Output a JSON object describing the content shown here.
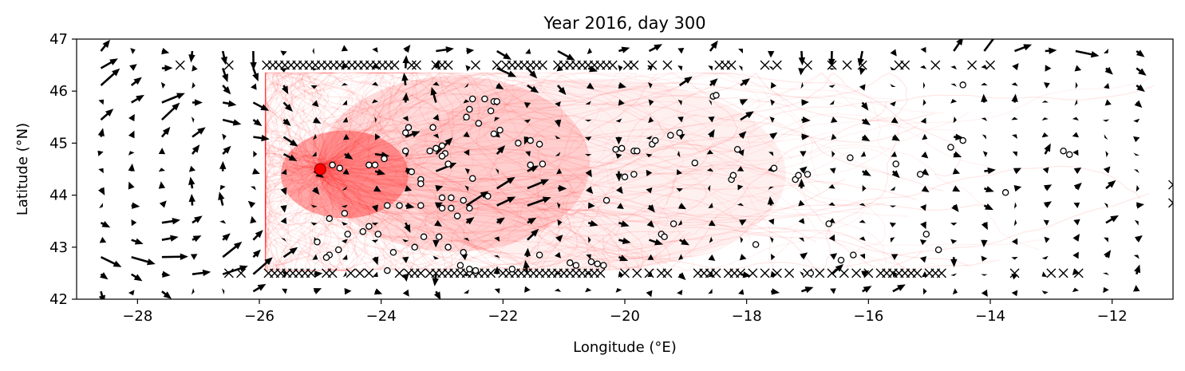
{
  "chart_data": {
    "type": "scatter",
    "title": "Year 2016, day 300",
    "xlabel": "Longitude (°E)",
    "ylabel": "Latitude (°N)",
    "xlim": [
      -29,
      -11
    ],
    "ylim": [
      42,
      47
    ],
    "xticks": [
      -28,
      -26,
      -24,
      -22,
      -20,
      -18,
      -16,
      -14,
      -12
    ],
    "yticks": [
      42,
      43,
      44,
      45,
      46,
      47
    ],
    "grid": false,
    "release_point": {
      "x": -25.0,
      "y": 44.5,
      "color": "#ff0000"
    },
    "particle_color": "#ffffff",
    "track_color": "#ff0000",
    "arrow_color": "#000000",
    "particles": [
      [
        -24.8,
        44.58
      ],
      [
        -24.68,
        44.52
      ],
      [
        -24.2,
        44.58
      ],
      [
        -24.1,
        44.58
      ],
      [
        -23.95,
        44.7
      ],
      [
        -23.5,
        44.45
      ],
      [
        -23.35,
        44.3
      ],
      [
        -23.35,
        44.22
      ],
      [
        -23.6,
        44.85
      ],
      [
        -23.6,
        45.2
      ],
      [
        -23.55,
        45.3
      ],
      [
        -23.2,
        44.85
      ],
      [
        -23.1,
        44.9
      ],
      [
        -23.0,
        44.95
      ],
      [
        -22.95,
        44.8
      ],
      [
        -22.9,
        44.6
      ],
      [
        -23.15,
        45.3
      ],
      [
        -23.0,
        44.75
      ],
      [
        -22.5,
        45.85
      ],
      [
        -22.3,
        45.85
      ],
      [
        -22.15,
        45.8
      ],
      [
        -22.1,
        45.8
      ],
      [
        -22.55,
        45.65
      ],
      [
        -22.6,
        45.5
      ],
      [
        -22.4,
        45.38
      ],
      [
        -22.2,
        45.62
      ],
      [
        -22.15,
        45.18
      ],
      [
        -22.05,
        45.25
      ],
      [
        -21.75,
        45.0
      ],
      [
        -21.55,
        45.05
      ],
      [
        -21.4,
        44.98
      ],
      [
        -21.55,
        44.58
      ],
      [
        -21.35,
        44.6
      ],
      [
        -22.5,
        44.32
      ],
      [
        -22.25,
        43.98
      ],
      [
        -23.0,
        43.95
      ],
      [
        -22.85,
        43.95
      ],
      [
        -23.0,
        43.75
      ],
      [
        -22.85,
        43.75
      ],
      [
        -22.75,
        43.6
      ],
      [
        -22.65,
        43.9
      ],
      [
        -22.55,
        43.75
      ],
      [
        -23.7,
        43.8
      ],
      [
        -23.35,
        43.8
      ],
      [
        -23.3,
        43.2
      ],
      [
        -23.05,
        43.2
      ],
      [
        -22.9,
        43.0
      ],
      [
        -22.65,
        42.9
      ],
      [
        -22.7,
        42.65
      ],
      [
        -22.55,
        42.58
      ],
      [
        -22.45,
        42.55
      ],
      [
        -21.85,
        42.58
      ],
      [
        -21.4,
        42.85
      ],
      [
        -20.9,
        42.7
      ],
      [
        -20.8,
        42.65
      ],
      [
        -20.55,
        42.72
      ],
      [
        -20.45,
        42.68
      ],
      [
        -20.35,
        42.65
      ],
      [
        -23.9,
        42.55
      ],
      [
        -23.8,
        42.9
      ],
      [
        -23.45,
        43.0
      ],
      [
        -24.05,
        43.25
      ],
      [
        -24.3,
        43.3
      ],
      [
        -24.55,
        43.25
      ],
      [
        -24.7,
        42.95
      ],
      [
        -24.85,
        42.85
      ],
      [
        -24.9,
        42.8
      ],
      [
        -25.05,
        43.1
      ],
      [
        -24.6,
        43.65
      ],
      [
        -24.85,
        43.55
      ],
      [
        -24.2,
        43.4
      ],
      [
        -23.9,
        43.8
      ],
      [
        -20.3,
        43.9
      ],
      [
        -20.15,
        44.88
      ],
      [
        -20.05,
        44.9
      ],
      [
        -19.85,
        44.85
      ],
      [
        -19.8,
        44.85
      ],
      [
        -19.55,
        44.98
      ],
      [
        -19.5,
        45.05
      ],
      [
        -19.25,
        45.15
      ],
      [
        -19.1,
        45.2
      ],
      [
        -19.85,
        44.4
      ],
      [
        -20.0,
        44.35
      ],
      [
        -19.4,
        43.25
      ],
      [
        -19.35,
        43.2
      ],
      [
        -19.2,
        43.45
      ],
      [
        -18.85,
        44.62
      ],
      [
        -18.55,
        45.9
      ],
      [
        -18.5,
        45.92
      ],
      [
        -18.25,
        44.3
      ],
      [
        -18.22,
        44.38
      ],
      [
        -18.15,
        44.88
      ],
      [
        -17.85,
        43.05
      ],
      [
        -17.55,
        44.52
      ],
      [
        -17.2,
        44.3
      ],
      [
        -17.15,
        44.38
      ],
      [
        -17.0,
        44.4
      ],
      [
        -16.95,
        42.5
      ],
      [
        -16.65,
        43.45
      ],
      [
        -16.45,
        42.75
      ],
      [
        -16.25,
        42.85
      ],
      [
        -16.3,
        44.72
      ],
      [
        -15.55,
        44.6
      ],
      [
        -15.15,
        44.4
      ],
      [
        -15.05,
        43.25
      ],
      [
        -14.85,
        42.95
      ],
      [
        -14.65,
        44.92
      ],
      [
        -14.45,
        45.05
      ],
      [
        -14.45,
        46.12
      ],
      [
        -13.75,
        44.05
      ],
      [
        -12.8,
        44.85
      ],
      [
        -12.7,
        44.78
      ]
    ],
    "beached_top": [
      -27.3,
      -26.5,
      -25.88,
      -25.78,
      -25.68,
      -25.58,
      -25.48,
      -25.38,
      -25.28,
      -25.18,
      -25.08,
      -24.98,
      -24.88,
      -24.78,
      -24.68,
      -24.58,
      -24.48,
      -24.38,
      -24.28,
      -24.18,
      -24.08,
      -23.98,
      -23.88,
      -23.78,
      -23.5,
      -23.42,
      -23.1,
      -23.0,
      -22.9,
      -22.45,
      -22.1,
      -21.95,
      -21.85,
      -21.75,
      -21.65,
      -21.55,
      -21.45,
      -21.35,
      -21.1,
      -21.0,
      -20.9,
      -20.8,
      -20.7,
      -20.6,
      -20.5,
      -20.4,
      -20.3,
      -20.2,
      -19.95,
      -19.85,
      -19.55,
      -19.3,
      -18.45,
      -18.35,
      -18.25,
      -17.7,
      -17.5,
      -17.0,
      -16.6,
      -16.35,
      -16.1,
      -15.5,
      -15.4,
      -14.9,
      -14.3,
      -14.0
    ],
    "beached_bottom": [
      -26.5,
      -26.3,
      -25.85,
      -25.75,
      -25.65,
      -25.55,
      -25.45,
      -25.35,
      -25.25,
      -25.15,
      -24.9,
      -24.8,
      -24.5,
      -24.35,
      -24.2,
      -23.7,
      -23.55,
      -23.45,
      -23.35,
      -23.2,
      -23.1,
      -23.0,
      -22.9,
      -22.8,
      -22.7,
      -22.6,
      -22.5,
      -22.4,
      -22.3,
      -22.2,
      -22.0,
      -21.9,
      -21.8,
      -21.7,
      -21.6,
      -21.5,
      -21.4,
      -21.3,
      -21.2,
      -21.1,
      -21.0,
      -20.9,
      -20.8,
      -20.7,
      -20.6,
      -20.5,
      -20.4,
      -20.0,
      -19.8,
      -19.6,
      -19.4,
      -19.3,
      -18.8,
      -18.7,
      -18.6,
      -18.5,
      -18.3,
      -18.2,
      -18.1,
      -17.9,
      -17.7,
      -17.5,
      -17.3,
      -17.0,
      -16.8,
      -16.6,
      -16.4,
      -16.2,
      -16.0,
      -15.8,
      -15.7,
      -15.6,
      -15.5,
      -15.4,
      -15.3,
      -15.2,
      -15.0,
      -14.9,
      -14.8,
      -13.6,
      -13.0,
      -12.8,
      -12.55
    ],
    "beached_right": [
      44.2,
      43.85
    ]
  }
}
